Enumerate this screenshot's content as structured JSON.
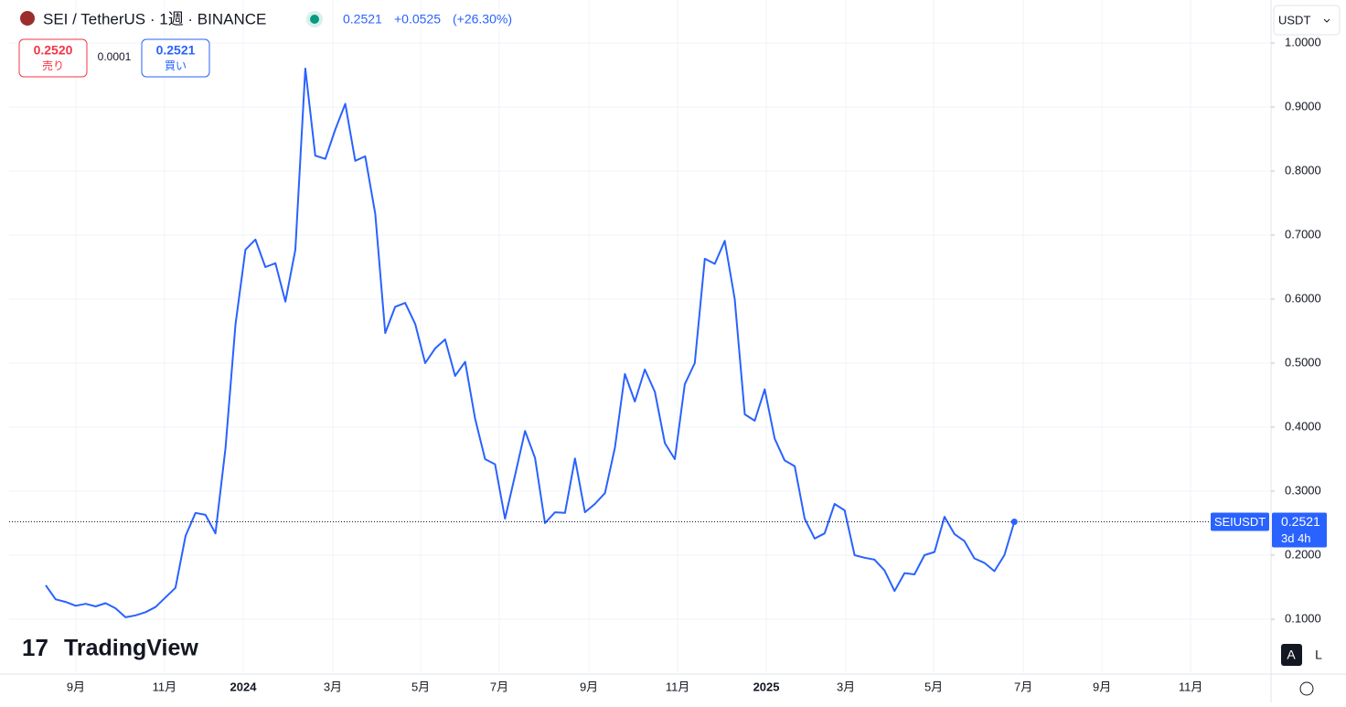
{
  "header": {
    "symbol": "SEI / TetherUS · 1週 · BINANCE",
    "price": "0.2521",
    "change": "+0.0525",
    "change_pct": "(+26.30%)",
    "currency": "USDT"
  },
  "trade": {
    "sell_price": "0.2520",
    "sell_label": "売り",
    "spread": "0.0001",
    "buy_price": "0.2521",
    "buy_label": "買い"
  },
  "chart_data": {
    "type": "line",
    "color": "#2962ff",
    "values": [
      0.153,
      0.131,
      0.127,
      0.121,
      0.124,
      0.12,
      0.125,
      0.117,
      0.103,
      0.106,
      0.111,
      0.119,
      0.134,
      0.149,
      0.23,
      0.266,
      0.263,
      0.234,
      0.367,
      0.56,
      0.677,
      0.693,
      0.65,
      0.656,
      0.596,
      0.677,
      0.96,
      0.824,
      0.819,
      0.865,
      0.905,
      0.816,
      0.823,
      0.733,
      0.547,
      0.588,
      0.594,
      0.561,
      0.5,
      0.523,
      0.537,
      0.48,
      0.502,
      0.413,
      0.35,
      0.342,
      0.257,
      0.325,
      0.394,
      0.352,
      0.25,
      0.267,
      0.266,
      0.351,
      0.267,
      0.28,
      0.297,
      0.368,
      0.483,
      0.44,
      0.49,
      0.455,
      0.375,
      0.35,
      0.467,
      0.5,
      0.663,
      0.655,
      0.691,
      0.6,
      0.42,
      0.41,
      0.459,
      0.382,
      0.348,
      0.339,
      0.257,
      0.226,
      0.234,
      0.28,
      0.27,
      0.2,
      0.196,
      0.193,
      0.176,
      0.144,
      0.172,
      0.17,
      0.2,
      0.205,
      0.26,
      0.233,
      0.222,
      0.195,
      0.188,
      0.175,
      0.2,
      0.2521
    ],
    "xlim": [
      -3.66,
      122.7
    ],
    "xticks": [
      {
        "value": 3.02,
        "label": "9月"
      },
      {
        "value": 11.9,
        "label": "11月"
      },
      {
        "value": 19.78,
        "label": "2024"
      },
      {
        "value": 28.75,
        "label": "3月"
      },
      {
        "value": 37.55,
        "label": "5月"
      },
      {
        "value": 45.42,
        "label": "7月"
      },
      {
        "value": 54.4,
        "label": "9月"
      },
      {
        "value": 63.28,
        "label": "11月"
      },
      {
        "value": 72.16,
        "label": "2025"
      },
      {
        "value": 80.13,
        "label": "3月"
      },
      {
        "value": 88.92,
        "label": "5月"
      },
      {
        "value": 97.9,
        "label": "7月"
      },
      {
        "value": 105.77,
        "label": "9月"
      },
      {
        "value": 114.65,
        "label": "11月"
      }
    ],
    "ylim": [
      0.0143,
      1.0671
    ],
    "yticks": [
      {
        "value": 0.1,
        "label": "0.1000"
      },
      {
        "value": 0.2,
        "label": "0.2000"
      },
      {
        "value": 0.3,
        "label": "0.3000"
      },
      {
        "value": 0.4,
        "label": "0.4000"
      },
      {
        "value": 0.5,
        "label": "0.5000"
      },
      {
        "value": 0.6,
        "label": "0.6000"
      },
      {
        "value": 0.7,
        "label": "0.7000"
      },
      {
        "value": 0.8,
        "label": "0.8000"
      },
      {
        "value": 0.9,
        "label": "0.9000"
      },
      {
        "value": 1,
        "label": "1.0000"
      }
    ],
    "grid": true,
    "last_label": "SEIUSDT",
    "last_price": "0.2521",
    "countdown": "3d 4h"
  },
  "watermark": "TradingView",
  "scale_buttons": [
    "A",
    "L"
  ]
}
